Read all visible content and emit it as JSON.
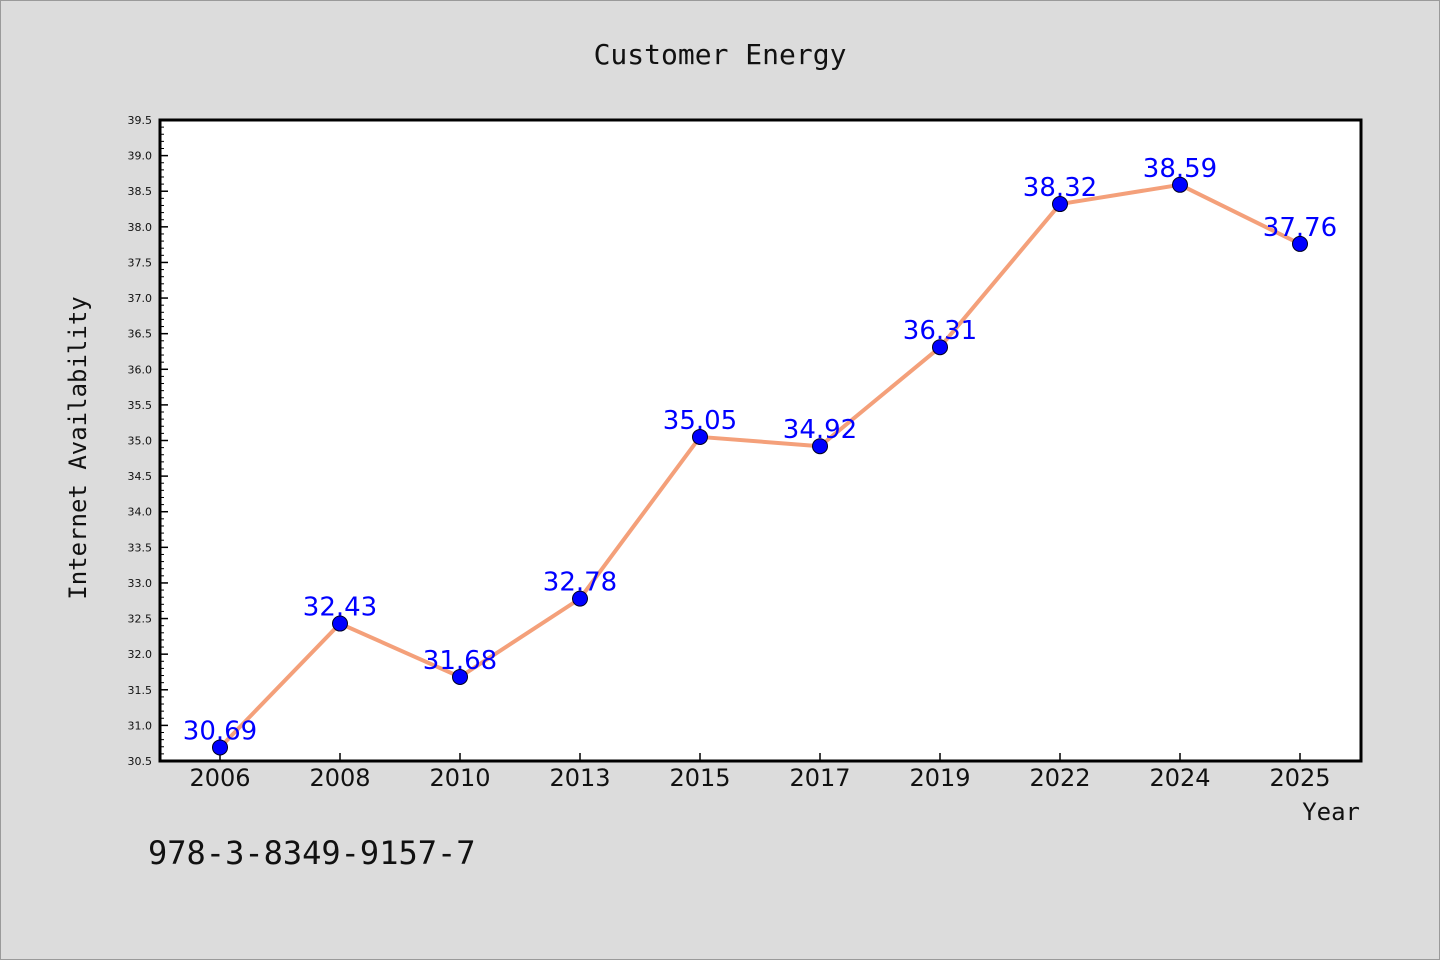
{
  "colors": {
    "background": "#dcdcdc",
    "plot_background": "#ffffff",
    "line": "#f4a07a",
    "marker": "#0000ff",
    "data_label": "#0000ff"
  },
  "footnote": "978-3-8349-9157-7",
  "chart_data": {
    "type": "line",
    "title": "Customer Energy",
    "xlabel": "Year",
    "ylabel": "Internet Availability",
    "categories": [
      "2006",
      "2008",
      "2010",
      "2013",
      "2015",
      "2017",
      "2019",
      "2022",
      "2024",
      "2025"
    ],
    "series": [
      {
        "values": [
          30.69,
          32.43,
          31.68,
          32.78,
          35.05,
          34.92,
          36.31,
          38.32,
          38.59,
          37.76
        ],
        "data_labels": [
          "30.69",
          "32.43",
          "31.68",
          "32.78",
          "35.05",
          "34.92",
          "36.31",
          "38.32",
          "38.59",
          "37.76"
        ]
      }
    ],
    "ylim": [
      30.5,
      39.5
    ],
    "yticks": [
      "30.5",
      "31.0",
      "31.5",
      "32.0",
      "32.5",
      "33.0",
      "33.5",
      "34.0",
      "34.5",
      "35.0",
      "35.5",
      "36.0",
      "36.5",
      "37.0",
      "37.5",
      "38.0",
      "38.5",
      "39.0",
      "39.5"
    ],
    "grid": false,
    "legend": "none"
  }
}
